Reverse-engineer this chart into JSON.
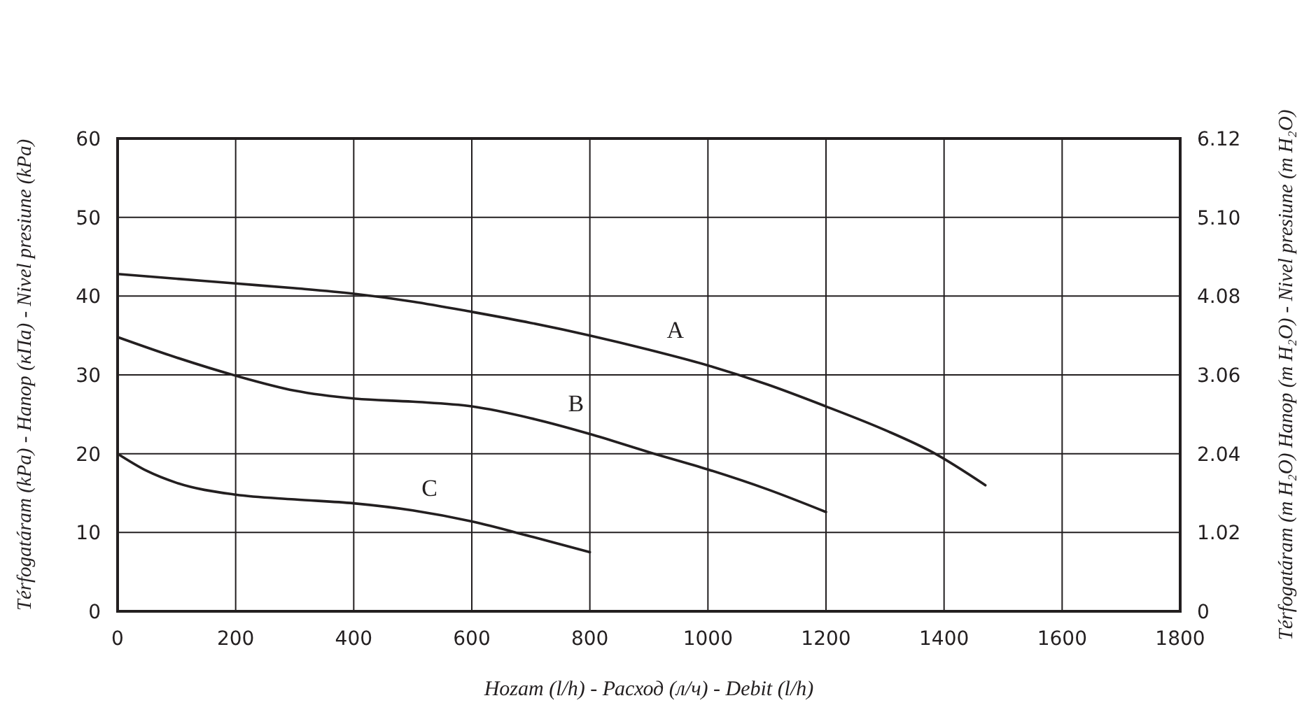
{
  "chart_data": {
    "type": "line",
    "xlabel": "Hozam (l/h) - Расход (л/ч) - Debit (l/h)",
    "ylabel": "Térfogatáram (kPa) - Напор (кПа) - Nivel presiune (kPa)",
    "y2label": "Térfogatáram (m H₂O) Напор (m H₂O) - Nivel presiune (m H₂O)",
    "xlim": [
      0,
      1800
    ],
    "xticks": [
      0,
      200,
      400,
      600,
      800,
      1000,
      1200,
      1400,
      1600,
      1800
    ],
    "ylim": [
      0,
      60
    ],
    "yticks": [
      0,
      10,
      20,
      30,
      40,
      50,
      60
    ],
    "y2lim": [
      0,
      6.12
    ],
    "y2ticks": [
      {
        "value": 0,
        "label": "0"
      },
      {
        "value": 1.02,
        "label": "1.02"
      },
      {
        "value": 2.04,
        "label": "2.04"
      },
      {
        "value": 3.06,
        "label": "3.06"
      },
      {
        "value": 4.08,
        "label": "4.08"
      },
      {
        "value": 5.1,
        "label": "5.10"
      },
      {
        "value": 6.12,
        "label": "6.12"
      }
    ],
    "grid": true,
    "marker": "none",
    "line_style": "solid",
    "series": [
      {
        "name": "A",
        "color": "#231f20",
        "x": [
          0,
          100,
          200,
          300,
          400,
          500,
          600,
          700,
          800,
          900,
          1000,
          1100,
          1200,
          1300,
          1380,
          1470
        ],
        "values": [
          42.8,
          42.2,
          41.6,
          41.0,
          40.3,
          39.3,
          38.0,
          36.6,
          35.0,
          33.2,
          31.2,
          28.8,
          26.0,
          23.0,
          20.2,
          16.0
        ]
      },
      {
        "name": "B",
        "color": "#231f20",
        "x": [
          0,
          100,
          200,
          300,
          400,
          500,
          600,
          700,
          800,
          900,
          1000,
          1100,
          1200
        ],
        "values": [
          34.8,
          32.2,
          29.9,
          28.0,
          27.0,
          26.6,
          26.0,
          24.5,
          22.5,
          20.2,
          18.0,
          15.5,
          12.6
        ]
      },
      {
        "name": "C",
        "color": "#231f20",
        "x": [
          0,
          50,
          100,
          200,
          300,
          400,
          500,
          600,
          700,
          800
        ],
        "values": [
          20.0,
          17.8,
          16.3,
          14.8,
          14.2,
          13.7,
          12.8,
          11.4,
          9.5,
          7.5
        ]
      }
    ]
  }
}
